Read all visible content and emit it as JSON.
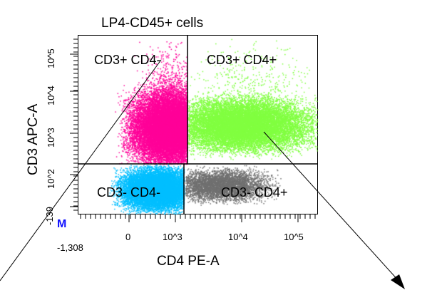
{
  "chart_data": {
    "type": "scatter",
    "title": "LP4-CD45+ cells",
    "xlabel": "CD4 PE-A",
    "ylabel": "CD3 APC-A",
    "x_scale": "biexponential",
    "y_scale": "biexponential",
    "x_ticks": [
      "-1,308",
      "0",
      "10^3",
      "10^4",
      "10^5"
    ],
    "y_ticks": [
      "-139",
      "10^2",
      "10^3",
      "10^4",
      "10^5"
    ],
    "quadrants": [
      {
        "label": "CD3+ CD4-",
        "color": "#ff0099"
      },
      {
        "label": "CD3+ CD4+",
        "color": "#80ff40"
      },
      {
        "label": "CD3- CD4-",
        "color": "#00bfff"
      },
      {
        "label": "CD3- CD4+",
        "color": "#707070"
      }
    ],
    "marker_label": "M"
  }
}
